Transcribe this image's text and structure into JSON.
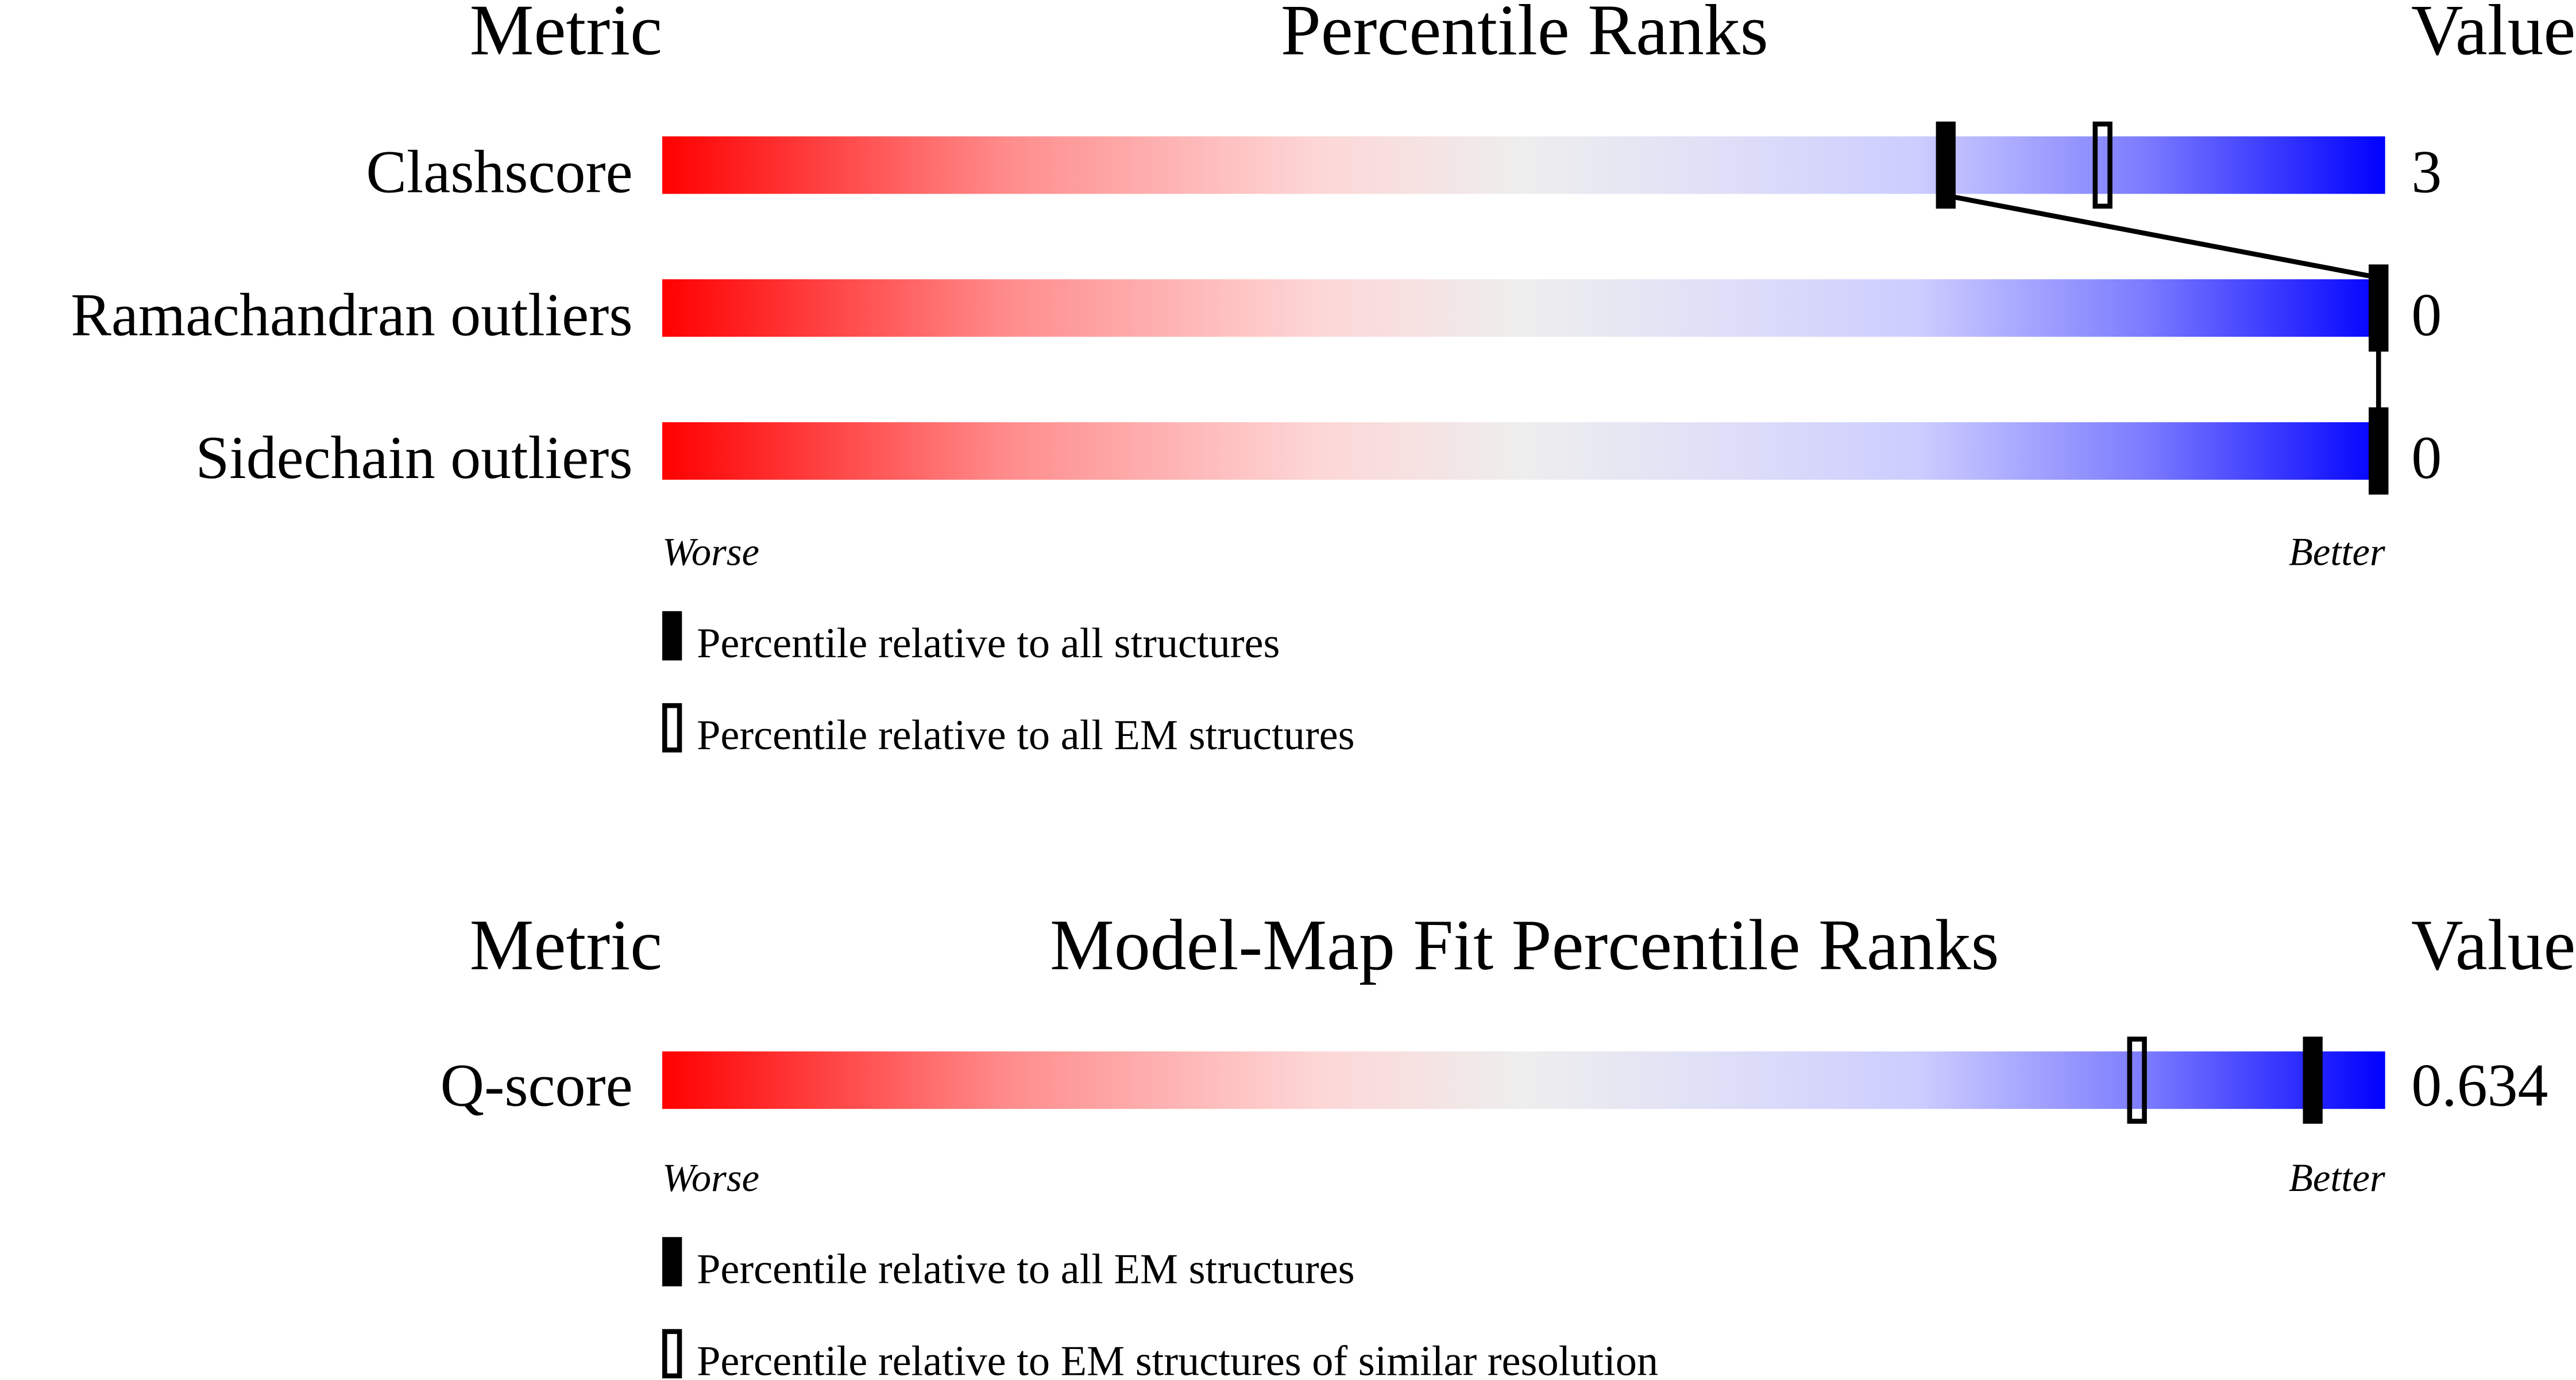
{
  "chart_data": [
    {
      "type": "percentile-slider",
      "header": {
        "metric": "Metric",
        "title": "Percentile Ranks",
        "value": "Value"
      },
      "axis": {
        "left_label": "Worse",
        "right_label": "Better",
        "range": [
          0,
          100
        ]
      },
      "gradient_colors": [
        "#ff0000",
        "#eeeeee",
        "#0000ff"
      ],
      "rows": [
        {
          "metric": "Clashscore",
          "value": "3",
          "percentile_all": 74.5,
          "percentile_em": 83.6
        },
        {
          "metric": "Ramachandran outliers",
          "value": "0",
          "percentile_all": 100,
          "percentile_em": 100
        },
        {
          "metric": "Sidechain outliers",
          "value": "0",
          "percentile_all": 100,
          "percentile_em": 100
        }
      ],
      "legend": [
        {
          "marker": "filled",
          "label": "Percentile relative to all structures"
        },
        {
          "marker": "open",
          "label": "Percentile relative to all EM structures"
        }
      ]
    },
    {
      "type": "percentile-slider",
      "header": {
        "metric": "Metric",
        "title": "Model-Map Fit Percentile Ranks",
        "value": "Value"
      },
      "axis": {
        "left_label": "Worse",
        "right_label": "Better",
        "range": [
          0,
          100
        ]
      },
      "gradient_colors": [
        "#ff0000",
        "#eeeeee",
        "#0000ff"
      ],
      "rows": [
        {
          "metric": "Q-score",
          "value": "0.634",
          "percentile_all": 95.8,
          "percentile_em": 85.6
        }
      ],
      "legend": [
        {
          "marker": "filled",
          "label": "Percentile relative to all EM structures"
        },
        {
          "marker": "open",
          "label": "Percentile relative to EM structures of similar resolution"
        }
      ]
    }
  ]
}
